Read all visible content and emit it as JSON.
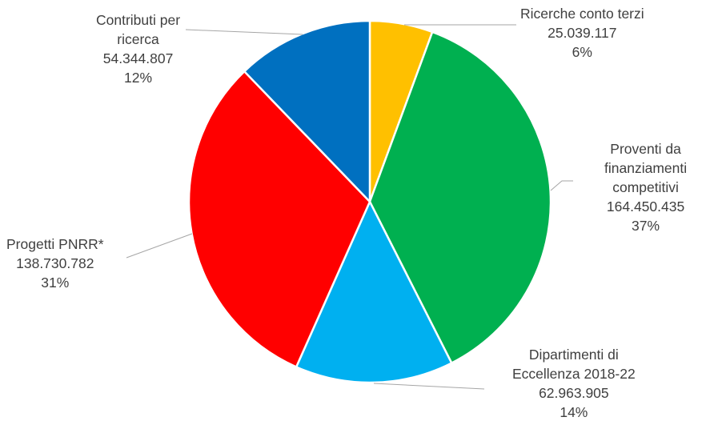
{
  "chart_data": {
    "type": "pie",
    "title": "",
    "start_angle_deg": 0,
    "direction": "clockwise",
    "slices": [
      {
        "label_lines": [
          "Ricerche conto terzi"
        ],
        "value": 25039117,
        "value_text": "25.039.117",
        "percent_text": "6%",
        "color": "#FFC000"
      },
      {
        "label_lines": [
          "Proventi da",
          "finanziamenti",
          "competitivi"
        ],
        "value": 164450435,
        "value_text": "164.450.435",
        "percent_text": "37%",
        "color": "#00B050"
      },
      {
        "label_lines": [
          "Dipartimenti di",
          "Eccellenza 2018-22"
        ],
        "value": 62963905,
        "value_text": "62.963.905",
        "percent_text": "14%",
        "color": "#00B0F0"
      },
      {
        "label_lines": [
          "Progetti PNRR*"
        ],
        "value": 138730782,
        "value_text": "138.730.782",
        "percent_text": "31%",
        "color": "#FF0000"
      },
      {
        "label_lines": [
          "Contributi per",
          "ricerca"
        ],
        "value": 54344807,
        "value_text": "54.344.807",
        "percent_text": "12%",
        "color": "#0070C0"
      }
    ],
    "legend": "none",
    "labels": "outside with leader lines"
  }
}
